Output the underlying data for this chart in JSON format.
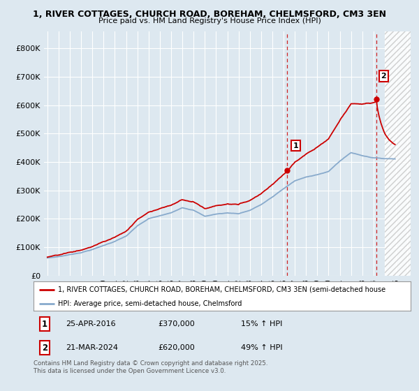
{
  "title_line1": "1, RIVER COTTAGES, CHURCH ROAD, BOREHAM, CHELMSFORD, CM3 3EN",
  "title_line2": "Price paid vs. HM Land Registry's House Price Index (HPI)",
  "bg_color": "#dde8f0",
  "plot_bg_color": "#dde8f0",
  "grid_color": "#ffffff",
  "red_color": "#cc0000",
  "blue_color": "#88aacc",
  "marker1_year": 2016.33,
  "marker2_year": 2024.25,
  "marker1_price": 370000,
  "marker2_price": 620000,
  "yticks": [
    0,
    100000,
    200000,
    300000,
    400000,
    500000,
    600000,
    700000,
    800000
  ],
  "ytick_labels": [
    "£0",
    "£100K",
    "£200K",
    "£300K",
    "£400K",
    "£500K",
    "£600K",
    "£700K",
    "£800K"
  ],
  "legend_entry1": "1, RIVER COTTAGES, CHURCH ROAD, BOREHAM, CHELMSFORD, CM3 3EN (semi-detached house",
  "legend_entry2": "HPI: Average price, semi-detached house, Chelmsford",
  "note1_label": "1",
  "note1_date": "25-APR-2016",
  "note1_price": "£370,000",
  "note1_hpi": "15% ↑ HPI",
  "note2_label": "2",
  "note2_date": "21-MAR-2024",
  "note2_price": "£620,000",
  "note2_hpi": "49% ↑ HPI",
  "footer": "Contains HM Land Registry data © Crown copyright and database right 2025.\nThis data is licensed under the Open Government Licence v3.0.",
  "hatch_start": 2025.0,
  "xmin": 1994.7,
  "xmax": 2027.3,
  "ymin": 0,
  "ymax": 860000
}
